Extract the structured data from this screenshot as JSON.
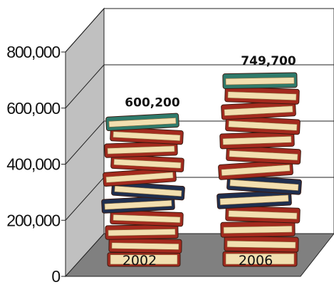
{
  "chart_data": {
    "type": "bar",
    "style": "3d pictograph of stacked books",
    "categories": [
      "2002",
      "2006"
    ],
    "values": [
      600200,
      749700
    ],
    "value_labels": [
      "600,200",
      "749,700"
    ],
    "y_ticks": [
      "0",
      "200,000",
      "400,000",
      "600,000",
      "800,000"
    ],
    "ylim": [
      0,
      800000
    ],
    "grid": true,
    "legend": "none",
    "colors": {
      "back_wall": "#ffffff",
      "side_wall": "#c0c0c0",
      "floor": "#808080",
      "book_red": "#a32a1e",
      "book_navy": "#1f2f4f",
      "book_teal": "#2f7a6b",
      "pages": "#f2dfb0"
    }
  }
}
